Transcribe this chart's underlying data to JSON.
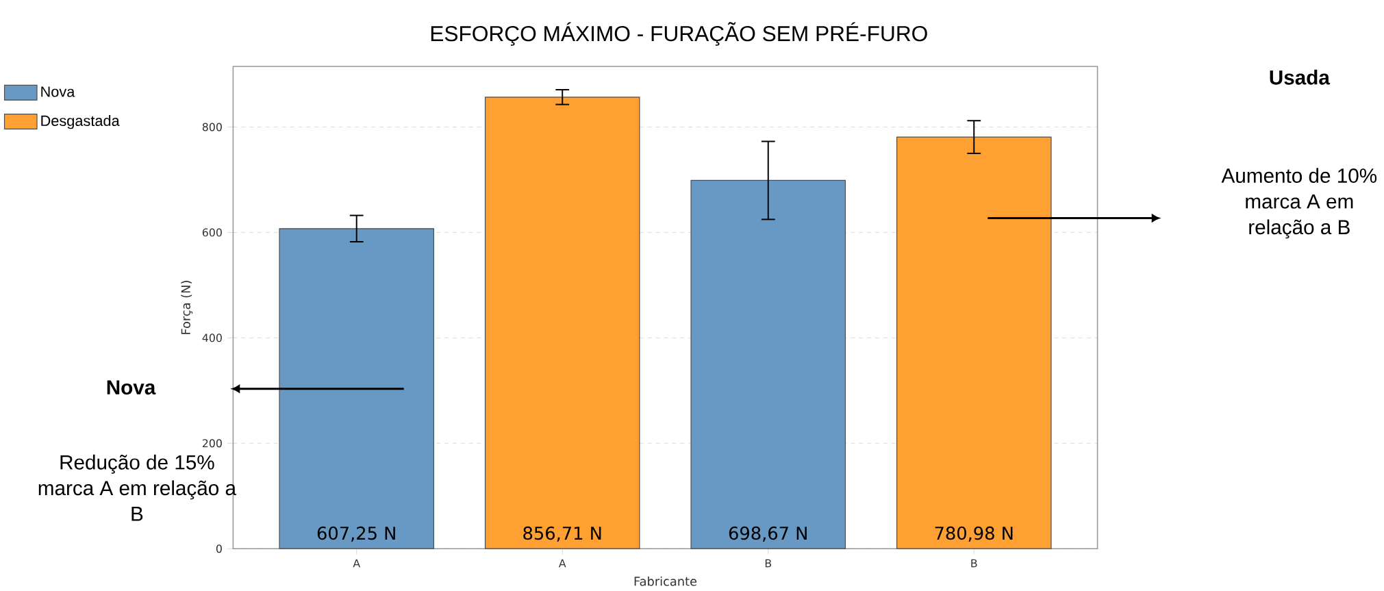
{
  "chart_data": {
    "type": "bar",
    "title": "ESFORÇO MÁXIMO - FURAÇÃO SEM PRÉ-FURO",
    "xlabel": "Fabricante",
    "ylabel": "Força (N)",
    "categories": [
      "A",
      "A",
      "B",
      "B"
    ],
    "series": [
      {
        "name": "Nova",
        "color": "#6899c4",
        "values": [
          607.25,
          null,
          698.67,
          null
        ],
        "errors": [
          25,
          null,
          74,
          null
        ],
        "value_labels": [
          "607,25 N",
          null,
          "698,67 N",
          null
        ]
      },
      {
        "name": "Desgastada",
        "color": "#ffa033",
        "values": [
          null,
          856.71,
          null,
          780.98
        ],
        "errors": [
          null,
          14,
          null,
          31
        ],
        "value_labels": [
          null,
          "856,71 N",
          null,
          "780,98 N"
        ]
      }
    ],
    "ylim": [
      0,
      915
    ],
    "yticks": [
      0,
      200,
      400,
      600,
      800
    ],
    "grid": "y",
    "legend": "top left",
    "annotations": [
      "Nova",
      "Redução de 15% marca A em relação a B",
      "Usada",
      "Aumento de 10% marca A em relação a B"
    ]
  }
}
